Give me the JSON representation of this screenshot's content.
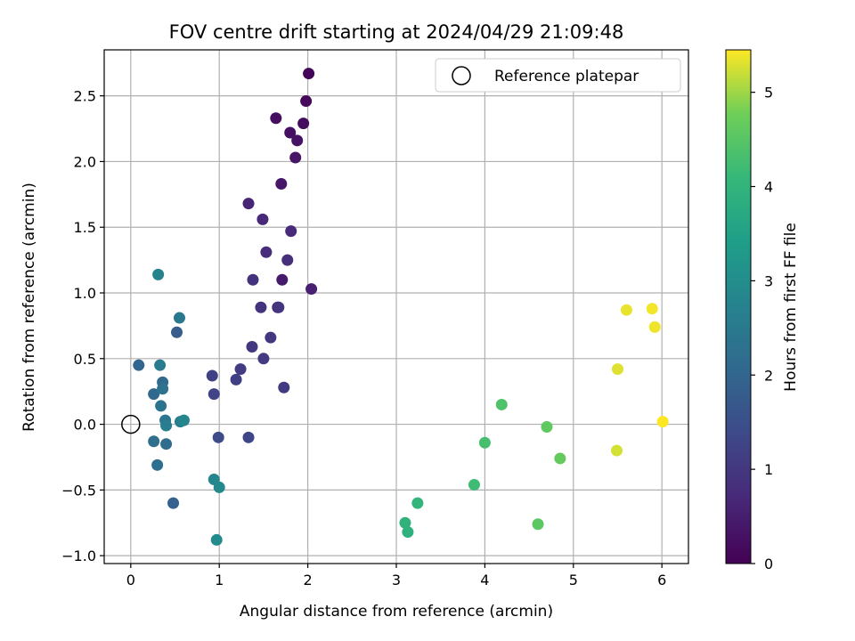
{
  "chart_data": {
    "type": "scatter",
    "title": "FOV centre drift starting at 2024/04/29 21:09:48",
    "xlabel": "Angular distance from reference (arcmin)",
    "ylabel": "Rotation from reference (arcmin)",
    "xlim": [
      -0.3,
      6.3
    ],
    "ylim": [
      -1.06,
      2.85
    ],
    "xticks": [
      0,
      1,
      2,
      3,
      4,
      5,
      6
    ],
    "xtick_labels": [
      "0",
      "1",
      "2",
      "3",
      "4",
      "5",
      "6"
    ],
    "yticks": [
      -1.0,
      -0.5,
      0.0,
      0.5,
      1.0,
      1.5,
      2.0,
      2.5
    ],
    "ytick_labels": [
      "−1.0",
      "−0.5",
      "0.0",
      "0.5",
      "1.0",
      "1.5",
      "2.0",
      "2.5"
    ],
    "grid": true,
    "colormap": "viridis",
    "colorbar": {
      "label": "Hours from first FF file",
      "range": [
        0,
        5.45
      ],
      "ticks": [
        0,
        1,
        2,
        3,
        4,
        5
      ],
      "tick_labels": [
        "0",
        "1",
        "2",
        "3",
        "4",
        "5"
      ]
    },
    "legend": {
      "position": "top-right",
      "entries": [
        {
          "label": "Reference platepar",
          "marker": "open-circle"
        }
      ]
    },
    "reference_point": {
      "x": 0,
      "y": 0,
      "marker_color": "#000000"
    },
    "series": [
      {
        "points": [
          {
            "x": 2.01,
            "y": 2.67,
            "c": 0.05
          },
          {
            "x": 1.98,
            "y": 2.46,
            "c": 0.12
          },
          {
            "x": 1.95,
            "y": 2.29,
            "c": 0.18
          },
          {
            "x": 1.64,
            "y": 2.33,
            "c": 0.22
          },
          {
            "x": 1.8,
            "y": 2.22,
            "c": 0.27
          },
          {
            "x": 1.88,
            "y": 2.16,
            "c": 0.3
          },
          {
            "x": 1.86,
            "y": 2.03,
            "c": 0.35
          },
          {
            "x": 1.7,
            "y": 1.83,
            "c": 0.38
          },
          {
            "x": 1.71,
            "y": 1.1,
            "c": 0.45
          },
          {
            "x": 1.66,
            "y": 0.89,
            "c": 0.48
          },
          {
            "x": 2.04,
            "y": 1.03,
            "c": 0.55
          },
          {
            "x": 1.33,
            "y": 1.68,
            "c": 0.62
          },
          {
            "x": 1.49,
            "y": 1.56,
            "c": 0.68
          },
          {
            "x": 1.81,
            "y": 1.47,
            "c": 0.72
          },
          {
            "x": 1.53,
            "y": 1.31,
            "c": 0.78
          },
          {
            "x": 1.77,
            "y": 1.25,
            "c": 0.82
          },
          {
            "x": 1.38,
            "y": 1.1,
            "c": 0.88
          },
          {
            "x": 1.47,
            "y": 0.89,
            "c": 0.92
          },
          {
            "x": 1.67,
            "y": 0.89,
            "c": 0.95
          },
          {
            "x": 1.58,
            "y": 0.66,
            "c": 0.98
          },
          {
            "x": 1.37,
            "y": 0.59,
            "c": 1.02
          },
          {
            "x": 1.5,
            "y": 0.5,
            "c": 1.05
          },
          {
            "x": 1.24,
            "y": 0.42,
            "c": 1.1
          },
          {
            "x": 1.73,
            "y": 0.28,
            "c": 1.08
          },
          {
            "x": 1.19,
            "y": 0.34,
            "c": 1.15
          },
          {
            "x": 0.92,
            "y": 0.37,
            "c": 1.2
          },
          {
            "x": 0.94,
            "y": 0.23,
            "c": 1.25
          },
          {
            "x": 1.33,
            "y": -0.1,
            "c": 1.3
          },
          {
            "x": 0.99,
            "y": -0.1,
            "c": 1.4
          },
          {
            "x": 0.52,
            "y": 0.7,
            "c": 1.8
          },
          {
            "x": 0.48,
            "y": -0.6,
            "c": 1.9
          },
          {
            "x": 0.09,
            "y": 0.45,
            "c": 2.0
          },
          {
            "x": 0.26,
            "y": 0.23,
            "c": 2.05
          },
          {
            "x": 0.36,
            "y": 0.32,
            "c": 2.1
          },
          {
            "x": 0.4,
            "y": -0.15,
            "c": 2.15
          },
          {
            "x": 0.3,
            "y": -0.31,
            "c": 2.2
          },
          {
            "x": 0.26,
            "y": -0.13,
            "c": 2.25
          },
          {
            "x": 0.36,
            "y": 0.27,
            "c": 2.3
          },
          {
            "x": 0.34,
            "y": 0.14,
            "c": 2.35
          },
          {
            "x": 0.39,
            "y": 0.03,
            "c": 2.4
          },
          {
            "x": 0.55,
            "y": 0.81,
            "c": 2.45
          },
          {
            "x": 0.33,
            "y": 0.45,
            "c": 2.55
          },
          {
            "x": 0.4,
            "y": -0.01,
            "c": 2.6
          },
          {
            "x": 0.56,
            "y": 0.02,
            "c": 2.65
          },
          {
            "x": 0.6,
            "y": 0.03,
            "c": 2.8
          },
          {
            "x": 0.94,
            "y": -0.42,
            "c": 2.85
          },
          {
            "x": 1.0,
            "y": -0.48,
            "c": 2.9
          },
          {
            "x": 0.97,
            "y": -0.88,
            "c": 2.95
          },
          {
            "x": 0.31,
            "y": 1.14,
            "c": 2.75
          },
          {
            "x": 3.24,
            "y": -0.6,
            "c": 4.0
          },
          {
            "x": 3.1,
            "y": -0.75,
            "c": 3.95
          },
          {
            "x": 3.13,
            "y": -0.82,
            "c": 3.9
          },
          {
            "x": 3.88,
            "y": -0.46,
            "c": 4.2
          },
          {
            "x": 4.0,
            "y": -0.14,
            "c": 4.3
          },
          {
            "x": 4.19,
            "y": 0.15,
            "c": 4.4
          },
          {
            "x": 4.7,
            "y": -0.02,
            "c": 4.6
          },
          {
            "x": 4.85,
            "y": -0.26,
            "c": 4.65
          },
          {
            "x": 4.6,
            "y": -0.76,
            "c": 4.55
          },
          {
            "x": 5.49,
            "y": -0.2,
            "c": 5.25
          },
          {
            "x": 5.5,
            "y": 0.42,
            "c": 5.3
          },
          {
            "x": 5.6,
            "y": 0.87,
            "c": 5.35
          },
          {
            "x": 5.89,
            "y": 0.88,
            "c": 5.4
          },
          {
            "x": 5.92,
            "y": 0.74,
            "c": 5.38
          },
          {
            "x": 6.01,
            "y": 0.02,
            "c": 5.45
          }
        ]
      }
    ]
  }
}
